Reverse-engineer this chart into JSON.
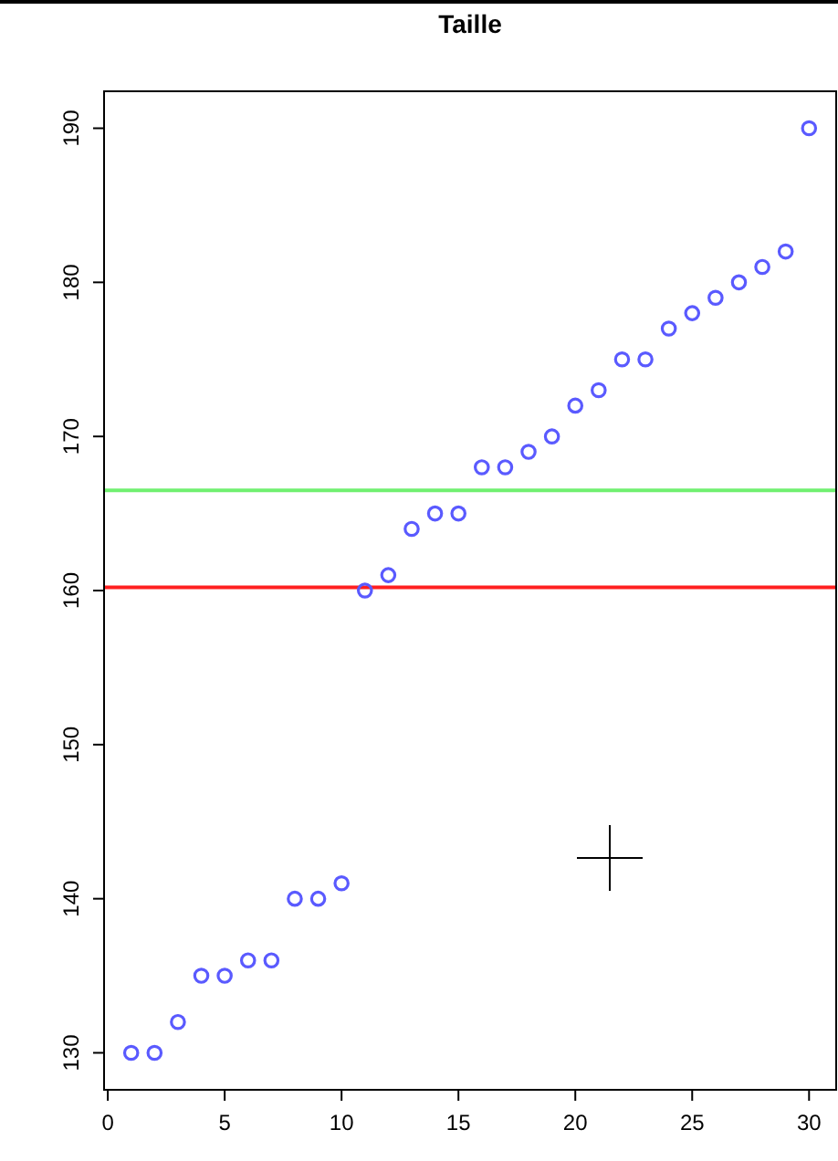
{
  "chart_data": {
    "type": "scatter",
    "title": "Taille",
    "x": [
      1,
      2,
      3,
      4,
      5,
      6,
      7,
      8,
      9,
      10,
      11,
      12,
      13,
      14,
      15,
      16,
      17,
      18,
      19,
      20,
      21,
      22,
      23,
      24,
      25,
      26,
      27,
      28,
      29,
      30
    ],
    "series": [
      {
        "color": "#5a5aff",
        "values": [
          130,
          130,
          132,
          135,
          135,
          136,
          136,
          140,
          140,
          141,
          160,
          161,
          164,
          165,
          165,
          168,
          168,
          169,
          170,
          172,
          173,
          175,
          175,
          177,
          178,
          179,
          180,
          181,
          182,
          190
        ]
      }
    ],
    "marker": "circle",
    "xlim": [
      -0.16,
      31.16
    ],
    "ylim": [
      127.6,
      192.4
    ],
    "xticks": [
      0,
      5,
      10,
      15,
      20,
      25,
      30
    ],
    "yticks": [
      130,
      140,
      150,
      160,
      170,
      180,
      190
    ],
    "ref_lines": [
      {
        "axis": "y",
        "value": 160.2,
        "color": "#ff2020"
      },
      {
        "axis": "y",
        "value": 166.5,
        "color": "#70f070"
      }
    ],
    "grid": false
  }
}
